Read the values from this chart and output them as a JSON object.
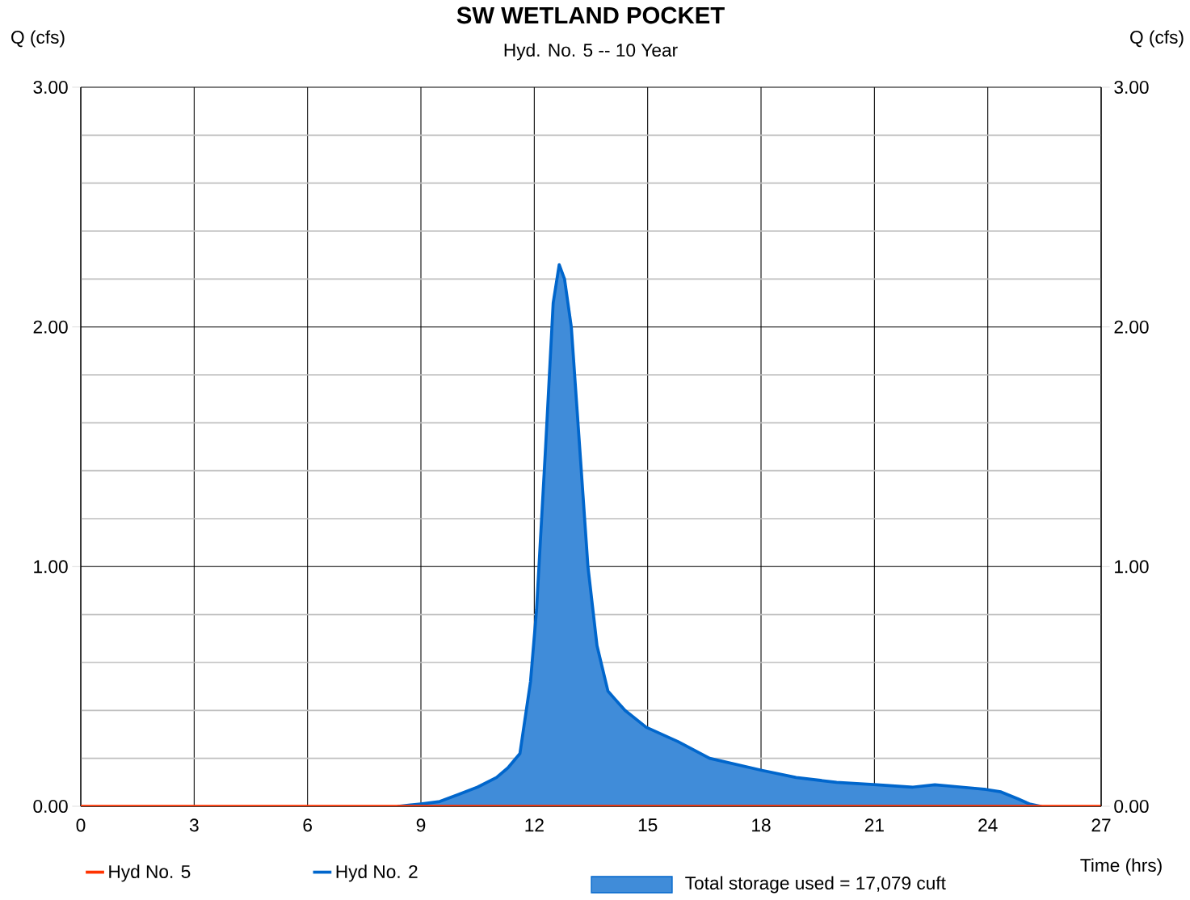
{
  "chart_data": {
    "type": "line",
    "title": "SW WETLAND POCKET",
    "subtitle": "Hyd. No. 5 -- 10 Year",
    "xlabel": "Time (hrs)",
    "ylabel": "Q (cfs)",
    "y2label": "Q (cfs)",
    "xlim": [
      0,
      27
    ],
    "xticks": [
      0,
      3,
      6,
      9,
      12,
      15,
      18,
      21,
      24,
      27
    ],
    "ylim": [
      0,
      3
    ],
    "yticks": [
      {
        "value": 0,
        "label": "0.00"
      },
      {
        "value": 1,
        "label": "1.00"
      },
      {
        "value": 2,
        "label": "2.00"
      },
      {
        "value": 3,
        "label": "3.00"
      }
    ],
    "y2lim": [
      0,
      3
    ],
    "y2ticks": [
      {
        "value": 0,
        "label": "0.00"
      },
      {
        "value": 1,
        "label": "1.00"
      },
      {
        "value": 2,
        "label": "2.00"
      },
      {
        "value": 3,
        "label": "3.00"
      }
    ],
    "grid": true,
    "legend": "bottom",
    "annotations": [
      "Total storage used = 17,079 cuft"
    ],
    "series": [
      {
        "name": "Hyd No. 5",
        "color": "#ff3300",
        "x": [
          0,
          27
        ],
        "values": [
          0,
          0
        ]
      },
      {
        "type": "area",
        "name": "Hyd No. 2",
        "color": "#0066cc",
        "x": [
          8.4,
          9.0,
          9.5,
          10.0,
          10.5,
          11.0,
          11.3,
          11.62,
          11.9,
          12.06,
          12.3,
          12.5,
          12.66,
          12.8,
          12.98,
          13.2,
          13.42,
          13.66,
          13.95,
          14.4,
          14.96,
          15.8,
          16.64,
          18.02,
          18.93,
          20.0,
          21.07,
          22.02,
          22.6,
          23.3,
          23.96,
          24.35,
          24.81,
          25.1,
          25.4
        ],
        "values": [
          0,
          0.01,
          0.02,
          0.05,
          0.08,
          0.12,
          0.16,
          0.22,
          0.52,
          0.82,
          1.5,
          2.1,
          2.26,
          2.2,
          2.0,
          1.5,
          1.0,
          0.67,
          0.48,
          0.4,
          0.33,
          0.27,
          0.2,
          0.15,
          0.12,
          0.1,
          0.09,
          0.08,
          0.09,
          0.08,
          0.07,
          0.06,
          0.03,
          0.01,
          0
        ]
      }
    ]
  }
}
